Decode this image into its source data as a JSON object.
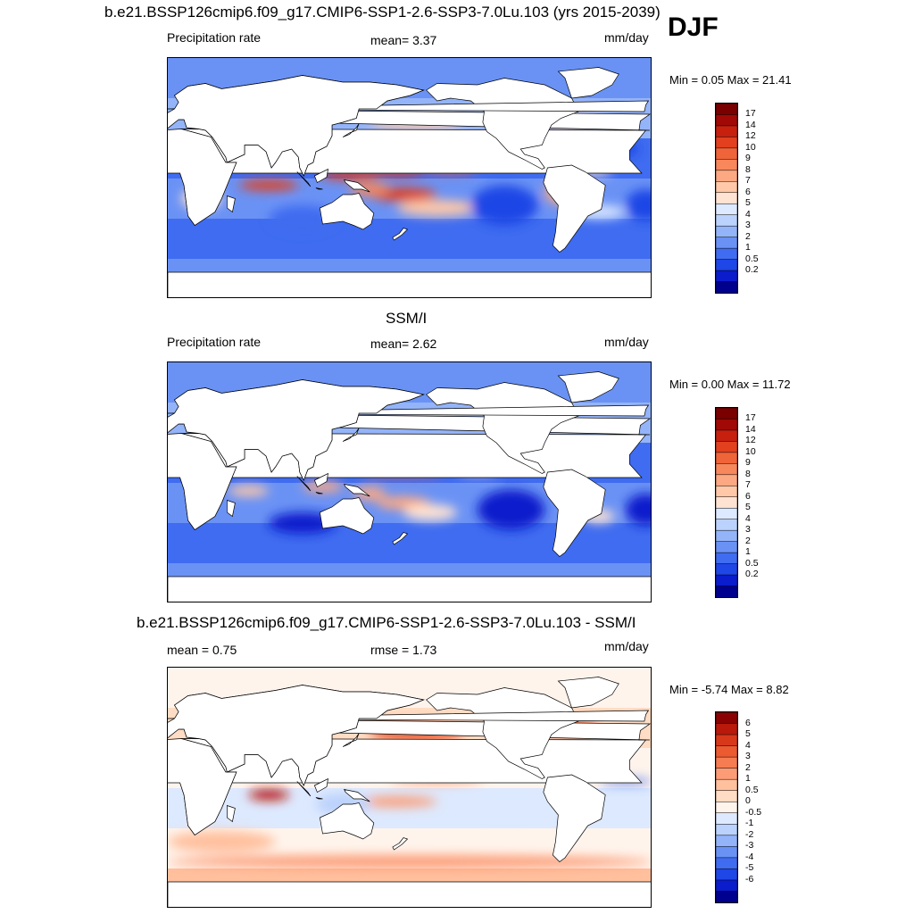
{
  "season": "DJF",
  "colors": {
    "seq": [
      "#00008f",
      "#0a1ccc",
      "#1f46e6",
      "#3f6cf0",
      "#6a92f5",
      "#94b4f9",
      "#bbd2fc",
      "#dde9fe",
      "#ffe3d2",
      "#ffc8a8",
      "#fca882",
      "#f8875c",
      "#f06439",
      "#e2401f",
      "#c7200f",
      "#a00905",
      "#7a0000"
    ],
    "div": [
      "#00008f",
      "#0a1ccc",
      "#1f46e6",
      "#3f6cf0",
      "#6a92f5",
      "#94b4f9",
      "#bbd2fc",
      "#dde9fe",
      "#fff4ec",
      "#ffdcc4",
      "#ffc09e",
      "#fc9c76",
      "#f67c52",
      "#ec5a31",
      "#d8381a",
      "#b8190a",
      "#8a0302"
    ],
    "land": "#ffffff",
    "coast": "#000000"
  },
  "panels": [
    {
      "title": "b.e21.BSSP126cmip6.f09_g17.CMIP6-SSP1-2.6-SSP3-7.0Lu.103 (yrs 2015-2039)",
      "left_label": "Precipitation rate",
      "center_label": "mean=   3.37",
      "units": "mm/day",
      "minmax": "Min =   0.05 Max =  21.41",
      "colorbar": {
        "labels": [
          "17",
          "14",
          "12",
          "10",
          "9",
          "8",
          "7",
          "6",
          "5",
          "4",
          "3",
          "2",
          "1",
          "0.5",
          "0.2"
        ]
      }
    },
    {
      "title": "SSM/I",
      "left_label": "Precipitation rate",
      "center_label": "mean=   2.62",
      "units": "mm/day",
      "minmax": "Min =   0.00 Max =  11.72",
      "colorbar": {
        "labels": [
          "17",
          "14",
          "12",
          "10",
          "9",
          "8",
          "7",
          "6",
          "5",
          "4",
          "3",
          "2",
          "1",
          "0.5",
          "0.2"
        ]
      }
    },
    {
      "title": "b.e21.BSSP126cmip6.f09_g17.CMIP6-SSP1-2.6-SSP3-7.0Lu.103 - SSM/I",
      "left_label": "mean =   0.75",
      "center_label": "rmse =   1.73",
      "units": "mm/day",
      "minmax": "Min =  -5.74 Max =   8.82",
      "colorbar": {
        "labels": [
          "6",
          "5",
          "4",
          "3",
          "2",
          "1",
          "0.5",
          "0",
          "-0.5",
          "-1",
          "-2",
          "-3",
          "-4",
          "-5",
          "-6"
        ]
      }
    }
  ],
  "chart_data": [
    {
      "type": "heatmap",
      "title": "b.e21.BSSP126cmip6.f09_g17.CMIP6-SSP1-2.6-SSP3-7.0Lu.103 (yrs 2015-2039)",
      "variable": "Precipitation rate",
      "units": "mm/day",
      "mean": 3.37,
      "min": 0.05,
      "max": 21.41,
      "contour_levels": [
        0.2,
        0.5,
        1,
        2,
        3,
        4,
        5,
        6,
        7,
        8,
        9,
        10,
        12,
        14,
        17
      ],
      "features": [
        {
          "lon": 75,
          "lat": -5,
          "value": 12,
          "rx": 22,
          "ry": 4
        },
        {
          "lon": 135,
          "lat": 3,
          "value": 12,
          "rx": 22,
          "ry": 4
        },
        {
          "lon": 170,
          "lat": 6,
          "value": 12,
          "rx": 22,
          "ry": 4
        },
        {
          "lon": 210,
          "lat": 7,
          "value": 10,
          "rx": 20,
          "ry": 3
        },
        {
          "lon": 175,
          "lat": -12,
          "value": 12,
          "rx": 25,
          "ry": 5
        },
        {
          "lon": 200,
          "lat": -22,
          "value": 7,
          "rx": 30,
          "ry": 6
        },
        {
          "lon": 150,
          "lat": -8,
          "value": 9,
          "rx": 15,
          "ry": 5
        },
        {
          "lon": 185,
          "lat": 42,
          "value": 7,
          "rx": 35,
          "ry": 5
        },
        {
          "lon": 300,
          "lat": 42,
          "value": 7,
          "rx": 25,
          "ry": 5
        },
        {
          "lon": 320,
          "lat": -25,
          "value": 5,
          "rx": 20,
          "ry": 5
        },
        {
          "lon": 315,
          "lat": 5,
          "value": 6,
          "rx": 15,
          "ry": 3
        },
        {
          "lon": 25,
          "lat": -15,
          "value": 6,
          "rx": 15,
          "ry": 8
        },
        {
          "lon": 295,
          "lat": -10,
          "value": 8,
          "rx": 15,
          "ry": 10
        },
        {
          "lon": 250,
          "lat": -20,
          "value": 0.5,
          "rx": 25,
          "ry": 15
        },
        {
          "lon": 355,
          "lat": -20,
          "value": 0.5,
          "rx": 15,
          "ry": 12
        },
        {
          "lon": 100,
          "lat": -30,
          "value": 1,
          "rx": 25,
          "ry": 10
        },
        {
          "lon": 60,
          "lat": 20,
          "value": 0.5,
          "rx": 15,
          "ry": 8
        },
        {
          "lon": 235,
          "lat": 22,
          "value": 1,
          "rx": 20,
          "ry": 6
        },
        {
          "lon": 335,
          "lat": 22,
          "value": 0.5,
          "rx": 15,
          "ry": 6
        }
      ]
    },
    {
      "type": "heatmap",
      "title": "SSM/I",
      "variable": "Precipitation rate",
      "units": "mm/day",
      "mean": 2.62,
      "min": 0.0,
      "max": 11.72,
      "contour_levels": [
        0.2,
        0.5,
        1,
        2,
        3,
        4,
        5,
        6,
        7,
        8,
        9,
        10,
        12,
        14,
        17
      ],
      "features": [
        {
          "lon": 60,
          "lat": -6,
          "value": 7,
          "rx": 15,
          "ry": 4
        },
        {
          "lon": 115,
          "lat": -3,
          "value": 8,
          "rx": 15,
          "ry": 4
        },
        {
          "lon": 150,
          "lat": -8,
          "value": 8,
          "rx": 12,
          "ry": 5
        },
        {
          "lon": 175,
          "lat": 7,
          "value": 10,
          "rx": 30,
          "ry": 2
        },
        {
          "lon": 175,
          "lat": -15,
          "value": 8,
          "rx": 20,
          "ry": 5
        },
        {
          "lon": 195,
          "lat": -22,
          "value": 6,
          "rx": 20,
          "ry": 6
        },
        {
          "lon": 320,
          "lat": -25,
          "value": 6,
          "rx": 12,
          "ry": 5
        },
        {
          "lon": 230,
          "lat": 8,
          "value": 6,
          "rx": 15,
          "ry": 2
        },
        {
          "lon": 185,
          "lat": 42,
          "value": 3,
          "rx": 35,
          "ry": 6
        },
        {
          "lon": 300,
          "lat": 42,
          "value": 3,
          "rx": 20,
          "ry": 6
        },
        {
          "lon": 100,
          "lat": -30,
          "value": 0.2,
          "rx": 25,
          "ry": 8
        },
        {
          "lon": 255,
          "lat": -20,
          "value": 0.2,
          "rx": 25,
          "ry": 15
        },
        {
          "lon": 355,
          "lat": -20,
          "value": 0.2,
          "rx": 15,
          "ry": 12
        },
        {
          "lon": 60,
          "lat": 20,
          "value": 0.2,
          "rx": 15,
          "ry": 8
        },
        {
          "lon": 235,
          "lat": 22,
          "value": 0.5,
          "rx": 20,
          "ry": 6
        }
      ]
    },
    {
      "type": "heatmap",
      "title": "b.e21.BSSP126cmip6.f09_g17.CMIP6-SSP1-2.6-SSP3-7.0Lu.103 - SSM/I",
      "units": "mm/day",
      "mean": 0.75,
      "rmse": 1.73,
      "min": -5.74,
      "max": 8.82,
      "contour_levels": [
        -6,
        -5,
        -4,
        -3,
        -2,
        -1,
        -0.5,
        0,
        0.5,
        1,
        2,
        3,
        4,
        5,
        6
      ],
      "features": [
        {
          "lon": 75,
          "lat": -5,
          "value": 6,
          "rx": 15,
          "ry": 4
        },
        {
          "lon": 185,
          "lat": 42,
          "value": 4,
          "rx": 35,
          "ry": 7
        },
        {
          "lon": 300,
          "lat": 45,
          "value": 4,
          "rx": 20,
          "ry": 6
        },
        {
          "lon": 170,
          "lat": -10,
          "value": 2,
          "rx": 30,
          "ry": 4
        },
        {
          "lon": 200,
          "lat": 8,
          "value": 2,
          "rx": 35,
          "ry": 4
        },
        {
          "lon": 340,
          "lat": 5,
          "value": -4,
          "rx": 20,
          "ry": 2
        },
        {
          "lon": 300,
          "lat": -5,
          "value": -2,
          "rx": 10,
          "ry": 5
        },
        {
          "lon": 130,
          "lat": -12,
          "value": -1,
          "rx": 20,
          "ry": 8
        },
        {
          "lon": 250,
          "lat": -12,
          "value": -0.5,
          "rx": 30,
          "ry": 6
        },
        {
          "lon": 180,
          "lat": -55,
          "value": 2,
          "rx": 180,
          "ry": 5
        },
        {
          "lon": 40,
          "lat": -40,
          "value": 1,
          "rx": 40,
          "ry": 8
        }
      ]
    }
  ]
}
